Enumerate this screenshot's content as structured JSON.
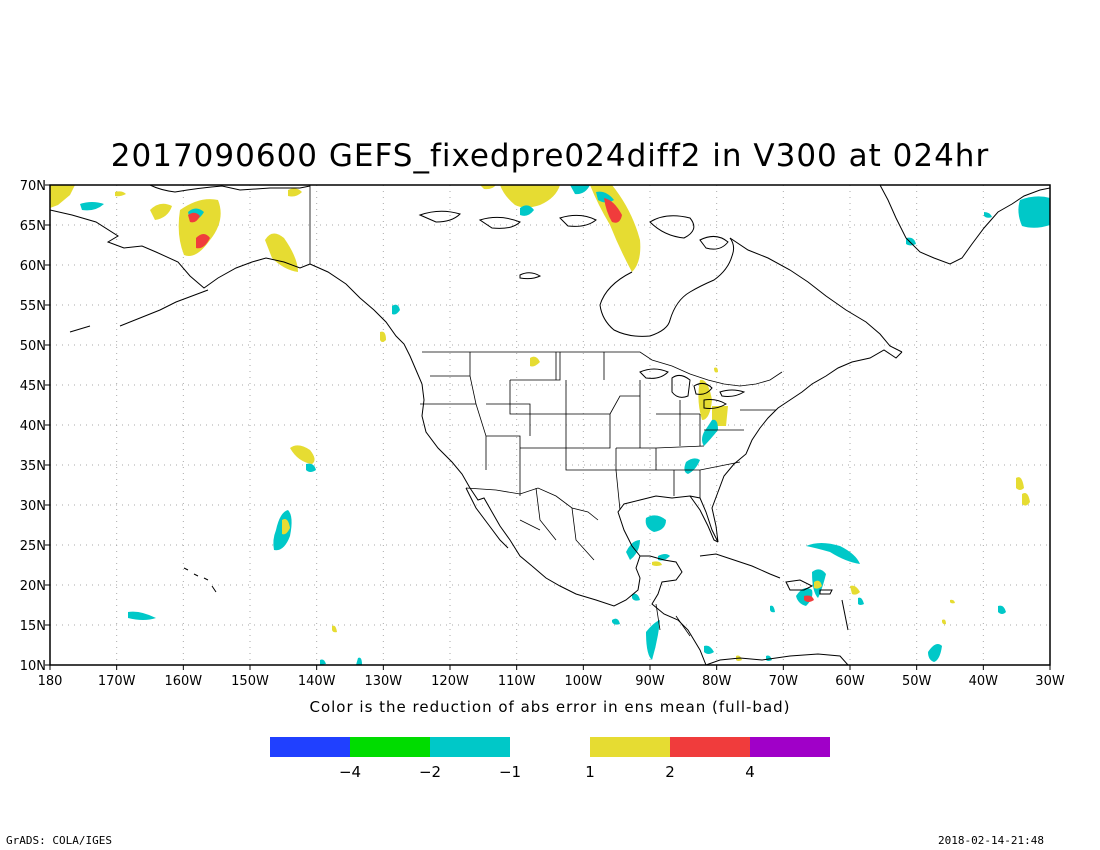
{
  "title": "2017090600 GEFS_fixedpre024diff2 in V300 at 024hr",
  "xlabel": "Color is the reduction of abs error in ens mean (full-bad)",
  "credit": "GrADS: COLA/IGES",
  "timestamp": "2018-02-14-21:48",
  "map": {
    "lon_range": [
      -180,
      -30
    ],
    "lat_range": [
      10,
      70
    ],
    "lon_ticks": [
      "180",
      "170W",
      "160W",
      "150W",
      "140W",
      "130W",
      "120W",
      "110W",
      "100W",
      "90W",
      "80W",
      "70W",
      "60W",
      "50W",
      "40W",
      "30W"
    ],
    "lat_ticks": [
      "10N",
      "15N",
      "20N",
      "25N",
      "30N",
      "35N",
      "40N",
      "45N",
      "50N",
      "55N",
      "60N",
      "65N",
      "70N"
    ],
    "grid": true
  },
  "colorbar": {
    "colors": [
      "#2040ff",
      "#00dc00",
      "#00c8c8",
      "#e6dc32",
      "#f03c3c",
      "#a000c8"
    ],
    "labels": [
      "-4",
      "-2",
      "-1",
      "1",
      "2",
      "4"
    ]
  },
  "palette": {
    "coast": "#000000",
    "grid": "#aaaaaa"
  }
}
